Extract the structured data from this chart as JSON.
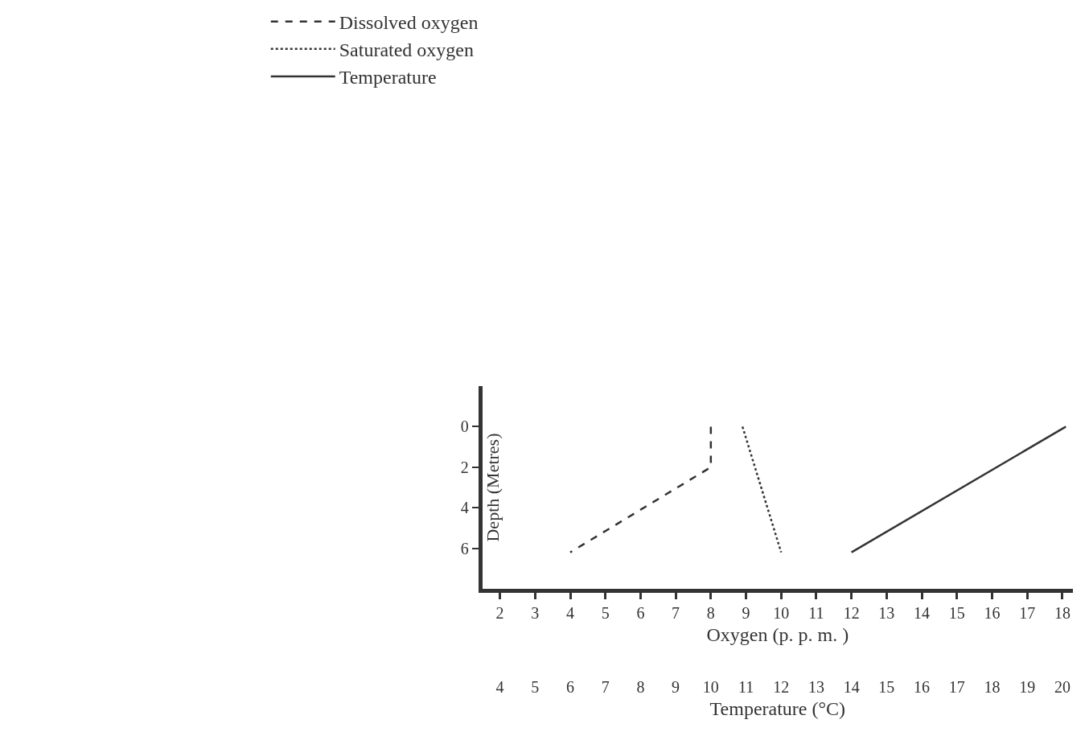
{
  "chart_data": {
    "type": "line",
    "xlabel": "Oxygen (p. p. m. )",
    "x2label": "Temperature (°C)",
    "ylabel": "Depth (Metres)",
    "xlim": [
      1.5,
      18.3
    ],
    "xticks": [
      2,
      3,
      4,
      5,
      6,
      7,
      8,
      9,
      10,
      11,
      12,
      13,
      14,
      15,
      16,
      17,
      18
    ],
    "x2lim": [
      3.5,
      20.3
    ],
    "x2ticks": [
      4,
      5,
      6,
      7,
      8,
      9,
      10,
      11,
      12,
      13,
      14,
      15,
      16,
      17,
      18,
      19,
      20
    ],
    "ylim": [
      8,
      -2
    ],
    "yticks": [
      0,
      2,
      4,
      6
    ],
    "grid": false,
    "legend": "top",
    "marker": "none",
    "series": [
      {
        "name": "Dissolved oxygen",
        "color": "#333333",
        "line_style": "dashed",
        "x": [
          8,
          8,
          4
        ],
        "values": [
          0,
          2,
          6.2
        ]
      },
      {
        "name": "Saturated oxygen",
        "color": "#333333",
        "line_style": "dotted",
        "x": [
          8.9,
          10
        ],
        "values": [
          0,
          6.2
        ]
      },
      {
        "name": "Temperature",
        "color": "#333333",
        "line_style": "solid",
        "axis": "x2",
        "x": [
          14,
          20.1
        ],
        "values": [
          6.2,
          0
        ]
      }
    ]
  }
}
